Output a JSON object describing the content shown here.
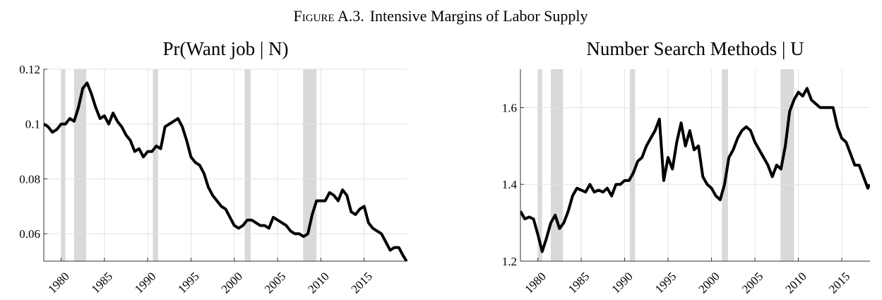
{
  "figure_label": "Figure A.3.",
  "figure_title": "Intensive Margins of Labor Supply",
  "chart_data": [
    {
      "type": "line",
      "title": "Pr(Want job | N)",
      "color": "#000000",
      "shade_color": "#d9d9d9",
      "grid": true,
      "xlim": [
        1978,
        2020
      ],
      "ylim": [
        0.05,
        0.12
      ],
      "xticks": [
        1980,
        1985,
        1990,
        1995,
        2000,
        2005,
        2010,
        2015
      ],
      "yticks": [
        0.06,
        0.08,
        0.1,
        0.12
      ],
      "shaded_periods": [
        [
          1980.0,
          1980.5
        ],
        [
          1981.5,
          1982.9
        ],
        [
          1990.6,
          1991.2
        ],
        [
          2001.2,
          2001.9
        ],
        [
          2007.95,
          2009.5
        ]
      ],
      "x": [
        1978,
        1978.5,
        1979,
        1979.5,
        1980,
        1980.5,
        1981,
        1981.5,
        1982,
        1982.5,
        1983,
        1983.5,
        1984,
        1984.5,
        1985,
        1985.5,
        1986,
        1986.5,
        1987,
        1987.5,
        1988,
        1988.5,
        1989,
        1989.5,
        1990,
        1990.5,
        1991,
        1991.5,
        1992,
        1992.5,
        1993,
        1993.5,
        1994,
        1994.5,
        1995,
        1995.5,
        1996,
        1996.5,
        1997,
        1997.5,
        1998,
        1998.5,
        1999,
        1999.5,
        2000,
        2000.5,
        2001,
        2001.5,
        2002,
        2002.5,
        2003,
        2003.5,
        2004,
        2004.5,
        2005,
        2005.5,
        2006,
        2006.5,
        2007,
        2007.5,
        2008,
        2008.5,
        2009,
        2009.5,
        2010,
        2010.5,
        2011,
        2011.5,
        2012,
        2012.5,
        2013,
        2013.5,
        2014,
        2014.5,
        2015,
        2015.5,
        2016,
        2016.5,
        2017,
        2017.5,
        2018,
        2018.5,
        2019,
        2019.5,
        2019.9
      ],
      "values": [
        0.1,
        0.099,
        0.097,
        0.098,
        0.1,
        0.1,
        0.102,
        0.101,
        0.106,
        0.113,
        0.115,
        0.111,
        0.106,
        0.102,
        0.103,
        0.1,
        0.104,
        0.101,
        0.099,
        0.096,
        0.094,
        0.09,
        0.091,
        0.088,
        0.09,
        0.09,
        0.092,
        0.091,
        0.099,
        0.1,
        0.101,
        0.102,
        0.099,
        0.094,
        0.088,
        0.086,
        0.085,
        0.082,
        0.077,
        0.074,
        0.072,
        0.07,
        0.069,
        0.066,
        0.063,
        0.062,
        0.063,
        0.065,
        0.065,
        0.064,
        0.063,
        0.063,
        0.062,
        0.066,
        0.065,
        0.064,
        0.063,
        0.061,
        0.06,
        0.06,
        0.059,
        0.06,
        0.067,
        0.072,
        0.072,
        0.072,
        0.075,
        0.074,
        0.072,
        0.076,
        0.074,
        0.068,
        0.067,
        0.069,
        0.07,
        0.064,
        0.062,
        0.061,
        0.06,
        0.057,
        0.054,
        0.055,
        0.055,
        0.052,
        0.05
      ]
    },
    {
      "type": "line",
      "title": "Number Search Methods | U",
      "color": "#000000",
      "shade_color": "#d9d9d9",
      "grid": true,
      "xlim": [
        1978,
        2018.25
      ],
      "ylim": [
        1.2,
        1.7
      ],
      "xticks": [
        1980,
        1985,
        1990,
        1995,
        2000,
        2005,
        2010,
        2015
      ],
      "yticks": [
        1.2,
        1.4,
        1.6
      ],
      "shaded_periods": [
        [
          1980.0,
          1980.5
        ],
        [
          1981.5,
          1982.9
        ],
        [
          1990.6,
          1991.2
        ],
        [
          2001.2,
          2001.9
        ],
        [
          2007.95,
          2009.5
        ]
      ],
      "x": [
        1978,
        1978.5,
        1979,
        1979.5,
        1980,
        1980.5,
        1981,
        1981.5,
        1982,
        1982.5,
        1983,
        1983.5,
        1984,
        1984.5,
        1985,
        1985.5,
        1986,
        1986.5,
        1987,
        1987.5,
        1988,
        1988.5,
        1989,
        1989.5,
        1990,
        1990.5,
        1991,
        1991.5,
        1992,
        1992.5,
        1993,
        1993.5,
        1994,
        1994.5,
        1995,
        1995.5,
        1996,
        1996.5,
        1997,
        1997.5,
        1998,
        1998.5,
        1999,
        1999.5,
        2000,
        2000.5,
        2001,
        2001.5,
        2002,
        2002.5,
        2003,
        2003.5,
        2004,
        2004.5,
        2005,
        2005.5,
        2006,
        2006.5,
        2007,
        2007.5,
        2008,
        2008.5,
        2009,
        2009.5,
        2010,
        2010.5,
        2011,
        2011.5,
        2012,
        2012.5,
        2013,
        2013.5,
        2014,
        2014.5,
        2015,
        2015.5,
        2016,
        2016.5,
        2017,
        2017.5,
        2018,
        2018.2
      ],
      "values": [
        1.33,
        1.31,
        1.315,
        1.31,
        1.27,
        1.225,
        1.26,
        1.3,
        1.32,
        1.285,
        1.3,
        1.33,
        1.37,
        1.39,
        1.385,
        1.38,
        1.4,
        1.38,
        1.385,
        1.38,
        1.39,
        1.37,
        1.4,
        1.4,
        1.41,
        1.41,
        1.43,
        1.46,
        1.47,
        1.5,
        1.52,
        1.54,
        1.57,
        1.41,
        1.47,
        1.44,
        1.51,
        1.56,
        1.5,
        1.54,
        1.49,
        1.5,
        1.42,
        1.4,
        1.39,
        1.37,
        1.36,
        1.4,
        1.47,
        1.49,
        1.52,
        1.54,
        1.55,
        1.54,
        1.51,
        1.49,
        1.47,
        1.45,
        1.42,
        1.45,
        1.44,
        1.5,
        1.59,
        1.62,
        1.64,
        1.63,
        1.65,
        1.62,
        1.61,
        1.6,
        1.6,
        1.6,
        1.6,
        1.55,
        1.52,
        1.51,
        1.48,
        1.45,
        1.45,
        1.42,
        1.39,
        1.4
      ]
    }
  ]
}
